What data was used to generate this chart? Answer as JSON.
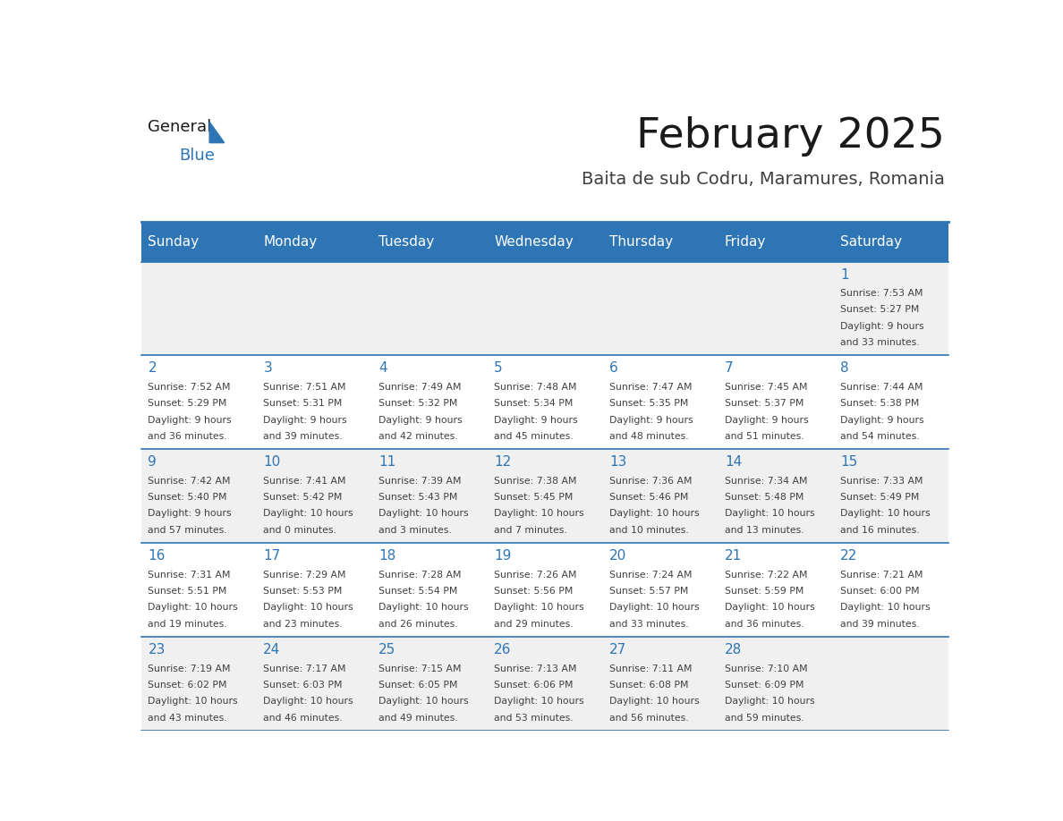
{
  "title": "February 2025",
  "subtitle": "Baita de sub Codru, Maramures, Romania",
  "header_color": "#2E75B6",
  "header_text_color": "#FFFFFF",
  "day_names": [
    "Sunday",
    "Monday",
    "Tuesday",
    "Wednesday",
    "Thursday",
    "Friday",
    "Saturday"
  ],
  "background_color": "#FFFFFF",
  "cell_bg_even": "#F0F0F0",
  "cell_bg_odd": "#FFFFFF",
  "separator_color": "#2E75B6",
  "day_number_color": "#2E75B6",
  "text_color": "#404040",
  "logo_black": "#1a1a1a",
  "logo_blue": "#2E75B6",
  "calendar_data": [
    [
      null,
      null,
      null,
      null,
      null,
      null,
      {
        "day": 1,
        "sunrise": "7:53 AM",
        "sunset": "5:27 PM",
        "daylight_line1": "9 hours",
        "daylight_line2": "and 33 minutes."
      }
    ],
    [
      {
        "day": 2,
        "sunrise": "7:52 AM",
        "sunset": "5:29 PM",
        "daylight_line1": "9 hours",
        "daylight_line2": "and 36 minutes."
      },
      {
        "day": 3,
        "sunrise": "7:51 AM",
        "sunset": "5:31 PM",
        "daylight_line1": "9 hours",
        "daylight_line2": "and 39 minutes."
      },
      {
        "day": 4,
        "sunrise": "7:49 AM",
        "sunset": "5:32 PM",
        "daylight_line1": "9 hours",
        "daylight_line2": "and 42 minutes."
      },
      {
        "day": 5,
        "sunrise": "7:48 AM",
        "sunset": "5:34 PM",
        "daylight_line1": "9 hours",
        "daylight_line2": "and 45 minutes."
      },
      {
        "day": 6,
        "sunrise": "7:47 AM",
        "sunset": "5:35 PM",
        "daylight_line1": "9 hours",
        "daylight_line2": "and 48 minutes."
      },
      {
        "day": 7,
        "sunrise": "7:45 AM",
        "sunset": "5:37 PM",
        "daylight_line1": "9 hours",
        "daylight_line2": "and 51 minutes."
      },
      {
        "day": 8,
        "sunrise": "7:44 AM",
        "sunset": "5:38 PM",
        "daylight_line1": "9 hours",
        "daylight_line2": "and 54 minutes."
      }
    ],
    [
      {
        "day": 9,
        "sunrise": "7:42 AM",
        "sunset": "5:40 PM",
        "daylight_line1": "9 hours",
        "daylight_line2": "and 57 minutes."
      },
      {
        "day": 10,
        "sunrise": "7:41 AM",
        "sunset": "5:42 PM",
        "daylight_line1": "10 hours",
        "daylight_line2": "and 0 minutes."
      },
      {
        "day": 11,
        "sunrise": "7:39 AM",
        "sunset": "5:43 PM",
        "daylight_line1": "10 hours",
        "daylight_line2": "and 3 minutes."
      },
      {
        "day": 12,
        "sunrise": "7:38 AM",
        "sunset": "5:45 PM",
        "daylight_line1": "10 hours",
        "daylight_line2": "and 7 minutes."
      },
      {
        "day": 13,
        "sunrise": "7:36 AM",
        "sunset": "5:46 PM",
        "daylight_line1": "10 hours",
        "daylight_line2": "and 10 minutes."
      },
      {
        "day": 14,
        "sunrise": "7:34 AM",
        "sunset": "5:48 PM",
        "daylight_line1": "10 hours",
        "daylight_line2": "and 13 minutes."
      },
      {
        "day": 15,
        "sunrise": "7:33 AM",
        "sunset": "5:49 PM",
        "daylight_line1": "10 hours",
        "daylight_line2": "and 16 minutes."
      }
    ],
    [
      {
        "day": 16,
        "sunrise": "7:31 AM",
        "sunset": "5:51 PM",
        "daylight_line1": "10 hours",
        "daylight_line2": "and 19 minutes."
      },
      {
        "day": 17,
        "sunrise": "7:29 AM",
        "sunset": "5:53 PM",
        "daylight_line1": "10 hours",
        "daylight_line2": "and 23 minutes."
      },
      {
        "day": 18,
        "sunrise": "7:28 AM",
        "sunset": "5:54 PM",
        "daylight_line1": "10 hours",
        "daylight_line2": "and 26 minutes."
      },
      {
        "day": 19,
        "sunrise": "7:26 AM",
        "sunset": "5:56 PM",
        "daylight_line1": "10 hours",
        "daylight_line2": "and 29 minutes."
      },
      {
        "day": 20,
        "sunrise": "7:24 AM",
        "sunset": "5:57 PM",
        "daylight_line1": "10 hours",
        "daylight_line2": "and 33 minutes."
      },
      {
        "day": 21,
        "sunrise": "7:22 AM",
        "sunset": "5:59 PM",
        "daylight_line1": "10 hours",
        "daylight_line2": "and 36 minutes."
      },
      {
        "day": 22,
        "sunrise": "7:21 AM",
        "sunset": "6:00 PM",
        "daylight_line1": "10 hours",
        "daylight_line2": "and 39 minutes."
      }
    ],
    [
      {
        "day": 23,
        "sunrise": "7:19 AM",
        "sunset": "6:02 PM",
        "daylight_line1": "10 hours",
        "daylight_line2": "and 43 minutes."
      },
      {
        "day": 24,
        "sunrise": "7:17 AM",
        "sunset": "6:03 PM",
        "daylight_line1": "10 hours",
        "daylight_line2": "and 46 minutes."
      },
      {
        "day": 25,
        "sunrise": "7:15 AM",
        "sunset": "6:05 PM",
        "daylight_line1": "10 hours",
        "daylight_line2": "and 49 minutes."
      },
      {
        "day": 26,
        "sunrise": "7:13 AM",
        "sunset": "6:06 PM",
        "daylight_line1": "10 hours",
        "daylight_line2": "and 53 minutes."
      },
      {
        "day": 27,
        "sunrise": "7:11 AM",
        "sunset": "6:08 PM",
        "daylight_line1": "10 hours",
        "daylight_line2": "and 56 minutes."
      },
      {
        "day": 28,
        "sunrise": "7:10 AM",
        "sunset": "6:09 PM",
        "daylight_line1": "10 hours",
        "daylight_line2": "and 59 minutes."
      },
      null
    ]
  ]
}
